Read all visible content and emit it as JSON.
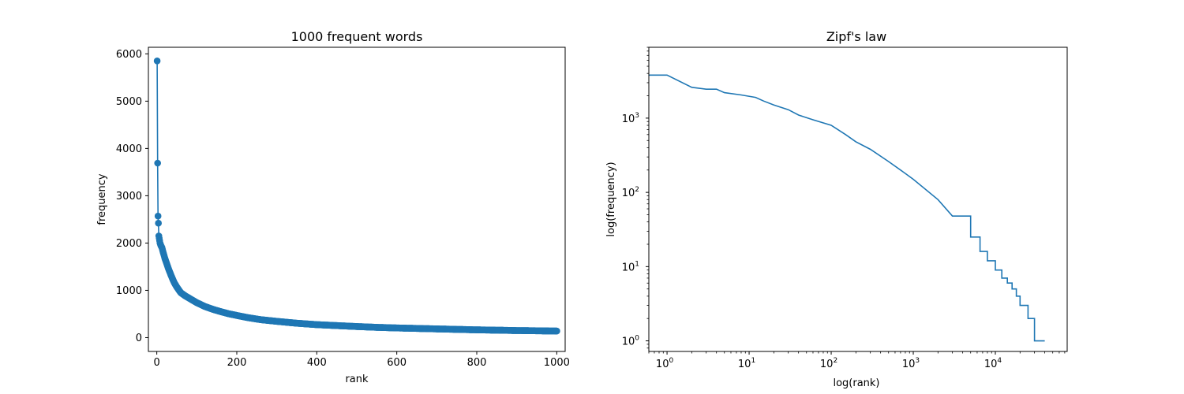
{
  "chart_data": [
    {
      "type": "scatter",
      "title": "1000 frequent words",
      "xlabel": "rank",
      "ylabel": "frequency",
      "xlim": [
        -21,
        1021
      ],
      "ylim": [
        -292,
        6139
      ],
      "xticks": [
        0,
        200,
        400,
        600,
        800,
        1000
      ],
      "yticks": [
        0,
        1000,
        2000,
        3000,
        4000,
        5000,
        6000
      ],
      "xtick_labels": [
        "0",
        "200",
        "400",
        "600",
        "800",
        "1000"
      ],
      "ytick_labels": [
        "0",
        "1000",
        "2000",
        "3000",
        "4000",
        "5000",
        "6000"
      ],
      "color": "#1f77b4",
      "markers": true,
      "series": [
        {
          "points": [
            [
              1,
              5850
            ],
            [
              2,
              3690
            ],
            [
              3,
              2570
            ],
            [
              4,
              2420
            ],
            [
              5,
              2150
            ],
            [
              6,
              2100
            ],
            [
              8,
              2000
            ],
            [
              10,
              1950
            ],
            [
              13,
              1900
            ],
            [
              16,
              1800
            ],
            [
              20,
              1680
            ],
            [
              25,
              1560
            ],
            [
              30,
              1440
            ],
            [
              35,
              1330
            ],
            [
              40,
              1230
            ],
            [
              45,
              1140
            ],
            [
              50,
              1070
            ],
            [
              55,
              1010
            ],
            [
              60,
              950
            ],
            [
              70,
              890
            ],
            [
              80,
              840
            ],
            [
              90,
              790
            ],
            [
              100,
              740
            ],
            [
              120,
              660
            ],
            [
              140,
              600
            ],
            [
              160,
              550
            ],
            [
              180,
              505
            ],
            [
              200,
              470
            ],
            [
              230,
              420
            ],
            [
              260,
              380
            ],
            [
              300,
              345
            ],
            [
              350,
              305
            ],
            [
              400,
              275
            ],
            [
              450,
              255
            ],
            [
              500,
              235
            ],
            [
              550,
              218
            ],
            [
              600,
              205
            ],
            [
              650,
              195
            ],
            [
              700,
              185
            ],
            [
              750,
              175
            ],
            [
              800,
              165
            ],
            [
              850,
              158
            ],
            [
              900,
              150
            ],
            [
              950,
              145
            ],
            [
              1000,
              140
            ]
          ]
        }
      ]
    },
    {
      "type": "line",
      "title": "Zipf's law",
      "xlabel": "log(rank)",
      "ylabel": "log(frequency)",
      "xscale": "log",
      "yscale": "log",
      "xlim": [
        0.6,
        75000
      ],
      "ylim": [
        0.72,
        9000
      ],
      "xticks": [
        1,
        10,
        100,
        1000,
        10000
      ],
      "yticks": [
        1,
        10,
        100,
        1000
      ],
      "color": "#1f77b4",
      "markers": false,
      "step": true,
      "series": [
        {
          "points": [
            [
              0.6,
              3800
            ],
            [
              1,
              3800
            ],
            [
              2,
              2600
            ],
            [
              3,
              2450
            ],
            [
              4,
              2450
            ],
            [
              5,
              2200
            ],
            [
              8,
              2050
            ],
            [
              12,
              1900
            ],
            [
              15,
              1700
            ],
            [
              20,
              1500
            ],
            [
              30,
              1300
            ],
            [
              40,
              1100
            ],
            [
              60,
              950
            ],
            [
              100,
              800
            ],
            [
              150,
              600
            ],
            [
              200,
              480
            ],
            [
              300,
              380
            ],
            [
              500,
              260
            ],
            [
              800,
              180
            ],
            [
              1000,
              150
            ],
            [
              2000,
              80
            ],
            [
              3000,
              48
            ],
            [
              5000,
              25
            ],
            [
              6500,
              16
            ],
            [
              8000,
              12
            ],
            [
              10000,
              9
            ],
            [
              12000,
              7
            ],
            [
              14000,
              6
            ],
            [
              16000,
              5
            ],
            [
              18000,
              4
            ],
            [
              20000,
              3
            ],
            [
              25000,
              2
            ],
            [
              30000,
              1
            ],
            [
              40000,
              1
            ]
          ]
        }
      ]
    }
  ]
}
